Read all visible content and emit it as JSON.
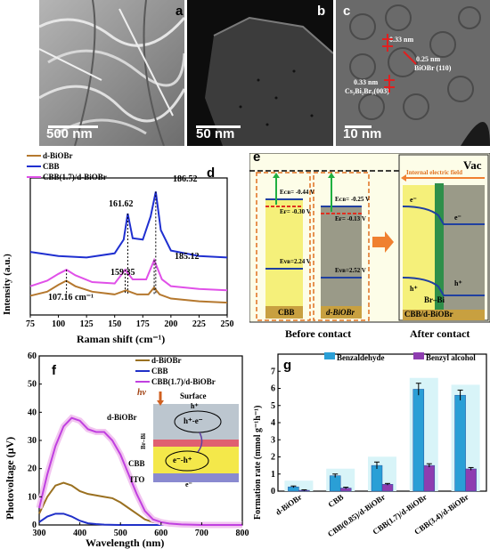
{
  "panel_a": {
    "letter": "a",
    "scale": "500 nm"
  },
  "panel_b": {
    "letter": "b",
    "scale": "50 nm"
  },
  "panel_c": {
    "letter": "c",
    "scale": "10 nm",
    "fringe1": "0.33 nm",
    "fringe2": "0.25 nm",
    "fringe2_phase": "BiOBr (110)",
    "fringe3": "0.33 nm",
    "fringe3_phase": "Cs₃Bi₂Br₉(003)"
  },
  "panel_d": {
    "letter": "d",
    "xlabel": "Raman shift (cm⁻¹)",
    "ylabel": "Intensity (a.u.)",
    "legend": [
      "d-BiOBr",
      "CBB",
      "CBB(1.7)/d-BiOBr"
    ],
    "xticks": [
      "75",
      "100",
      "125",
      "150",
      "175",
      "200",
      "225",
      "250"
    ],
    "peaks": [
      "186.52",
      "161.62",
      "159.35",
      "185.12",
      "107.16 cm⁻¹"
    ],
    "colors": {
      "bioBr": "#b5782e",
      "cbb": "#1f2fd0",
      "composite": "#e050e8"
    }
  },
  "panel_e": {
    "letter": "e",
    "vac": "Vac",
    "ief": "Internal electric field",
    "cbb_label": "CBB",
    "bio_label": "d-BiOBr",
    "cbb_phi": "Φ=5.13 eV",
    "bio_phi": "Φ=5.17 eV",
    "cbb_ecb": "Eᴄʙ= -0.44 V",
    "cbb_ef": "Eғ= -0.30 V",
    "cbb_evb": "Eᴠʙ=2.24 V",
    "bio_ecb": "Eᴄʙ= -0.25 V",
    "bio_ef": "Eғ= -0.13 V",
    "bio_evb": "Eᴠʙ=2.52 V",
    "before": "Before contact",
    "after": "After contact",
    "bond": "Br–Bi",
    "junction": "CBB/d-BiOBr",
    "eminus": "e⁻",
    "hplus": "h⁺"
  },
  "panel_f": {
    "letter": "f",
    "xlabel": "Wavelength (nm)",
    "ylabel": "Photovoltage (μV)",
    "legend": [
      "d-BiOBr",
      "CBB",
      "CBB(1.7)/d-BiOBr"
    ],
    "xticks": [
      "300",
      "400",
      "500",
      "600",
      "700",
      "800"
    ],
    "yticks": [
      "0",
      "10",
      "20",
      "30",
      "40",
      "50",
      "60"
    ],
    "inset": {
      "hv": "hν",
      "surface": "Surface",
      "bio": "d-BiOBr",
      "brbi": "Br–Bi",
      "cbb": "CBB",
      "ito": "ITO",
      "pair1": "h⁺-e⁻",
      "pair2": "e⁻-h⁺",
      "h": "h⁺",
      "e": "e⁻"
    }
  },
  "panel_g": {
    "letter": "g",
    "ylabel": "Formation rate (mmol g⁻¹h⁻¹)",
    "legend": [
      "Benzaldehyde",
      "Benzyl alcohol"
    ],
    "yticks": [
      "0",
      "1",
      "2",
      "3",
      "4",
      "5",
      "6",
      "7"
    ],
    "colors": {
      "benzaldehyde": "#2a9fd6",
      "alcohol": "#8e3db0"
    }
  },
  "chart_data": [
    {
      "type": "line",
      "xlabel": "Raman shift (cm⁻¹)",
      "ylabel": "Intensity (a.u.)",
      "xlim": [
        75,
        250
      ],
      "series": [
        {
          "name": "d-BiOBr",
          "x": [
            75,
            90,
            100,
            107,
            115,
            130,
            150,
            160,
            170,
            180,
            185,
            190,
            200,
            225,
            250
          ],
          "y": [
            0.14,
            0.17,
            0.22,
            0.25,
            0.21,
            0.17,
            0.15,
            0.18,
            0.15,
            0.15,
            0.2,
            0.15,
            0.12,
            0.1,
            0.09
          ]
        },
        {
          "name": "CBB",
          "x": [
            75,
            100,
            125,
            150,
            158,
            161.62,
            166,
            175,
            182,
            186.52,
            191,
            200,
            225,
            250
          ],
          "y": [
            0.46,
            0.43,
            0.42,
            0.45,
            0.55,
            0.74,
            0.56,
            0.55,
            0.72,
            0.9,
            0.62,
            0.47,
            0.43,
            0.42
          ]
        },
        {
          "name": "CBB(1.7)/d-BiOBr",
          "x": [
            75,
            90,
            100,
            107.16,
            115,
            130,
            150,
            159.35,
            166,
            178,
            185.12,
            192,
            200,
            225,
            250
          ],
          "y": [
            0.21,
            0.25,
            0.3,
            0.33,
            0.29,
            0.24,
            0.23,
            0.33,
            0.26,
            0.26,
            0.4,
            0.26,
            0.21,
            0.19,
            0.18
          ]
        }
      ]
    },
    {
      "type": "line",
      "xlabel": "Wavelength (nm)",
      "ylabel": "Photovoltage (μV)",
      "xlim": [
        300,
        800
      ],
      "ylim": [
        0,
        60
      ],
      "series": [
        {
          "name": "d-BiOBr",
          "x": [
            300,
            320,
            340,
            360,
            380,
            400,
            420,
            440,
            460,
            480,
            500,
            520,
            540,
            560,
            580,
            600,
            650,
            700,
            800
          ],
          "y": [
            4,
            10,
            14,
            15,
            14,
            12,
            11,
            10.5,
            10,
            9.5,
            8,
            6,
            4,
            2,
            1,
            0.5,
            0.2,
            0.1,
            0
          ]
        },
        {
          "name": "CBB",
          "x": [
            300,
            320,
            340,
            360,
            380,
            400,
            420,
            440,
            460,
            500,
            550,
            800
          ],
          "y": [
            1,
            3,
            4,
            4,
            3,
            1.5,
            0.6,
            0.3,
            0.1,
            0,
            0,
            0
          ]
        },
        {
          "name": "CBB(1.7)/d-BiOBr",
          "x": [
            300,
            320,
            340,
            360,
            380,
            400,
            420,
            440,
            460,
            480,
            500,
            520,
            540,
            560,
            580,
            600,
            620,
            650,
            700,
            800
          ],
          "y": [
            6,
            18,
            28,
            35,
            38,
            37,
            34,
            33,
            33,
            30,
            25,
            18,
            11,
            5,
            2,
            1,
            0.5,
            0.2,
            0,
            0
          ]
        }
      ]
    },
    {
      "type": "bar",
      "categories": [
        "d-BiOBr",
        "CBB",
        "CBB(0.85)/d-BiOBr",
        "CBB(1.7)/d-BiOBr",
        "CBB(3.4)/d-BiOBr"
      ],
      "ylabel": "Formation rate (mmol g⁻¹h⁻¹)",
      "ylim": [
        0,
        8
      ],
      "series": [
        {
          "name": "Benzaldehyde",
          "values": [
            0.25,
            0.9,
            1.5,
            5.95,
            5.6
          ],
          "errors": [
            0.05,
            0.1,
            0.2,
            0.35,
            0.3
          ]
        },
        {
          "name": "Benzyl alcohol",
          "values": [
            0.05,
            0.18,
            0.4,
            1.5,
            1.3
          ],
          "errors": [
            0.03,
            0.05,
            0.05,
            0.1,
            0.08
          ]
        }
      ]
    }
  ]
}
